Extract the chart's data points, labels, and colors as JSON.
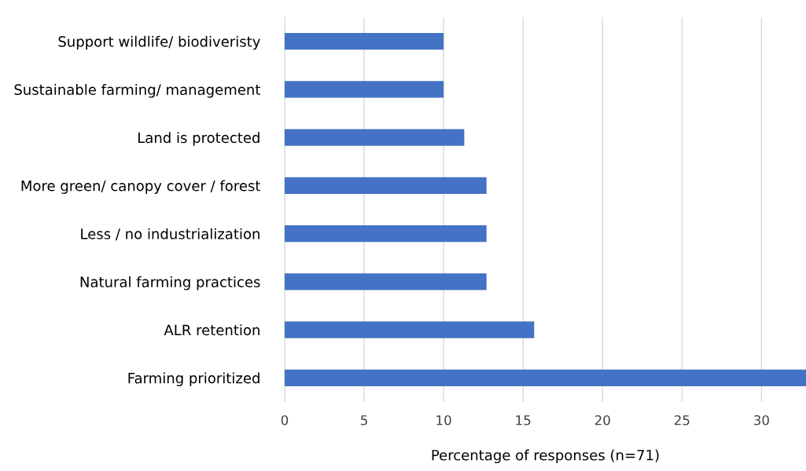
{
  "chart_data": {
    "type": "bar",
    "orientation": "horizontal",
    "categories": [
      "Support wildlife/ biodiveristy",
      "Sustainable farming/ management",
      "Land is protected",
      "More green/ canopy cover / forest",
      "Less / no industrialization",
      "Natural farming practices",
      "ALR retention",
      "Farming prioritized"
    ],
    "values": [
      10,
      10,
      11.3,
      12.7,
      12.7,
      12.7,
      15.7,
      32.8
    ],
    "color": "#4472c4",
    "xlabel": "Percentage of responses (n=71)",
    "xlim": [
      0,
      32.8
    ],
    "xticks": [
      0,
      5,
      10,
      15,
      20,
      25,
      30
    ],
    "grid": "x"
  }
}
